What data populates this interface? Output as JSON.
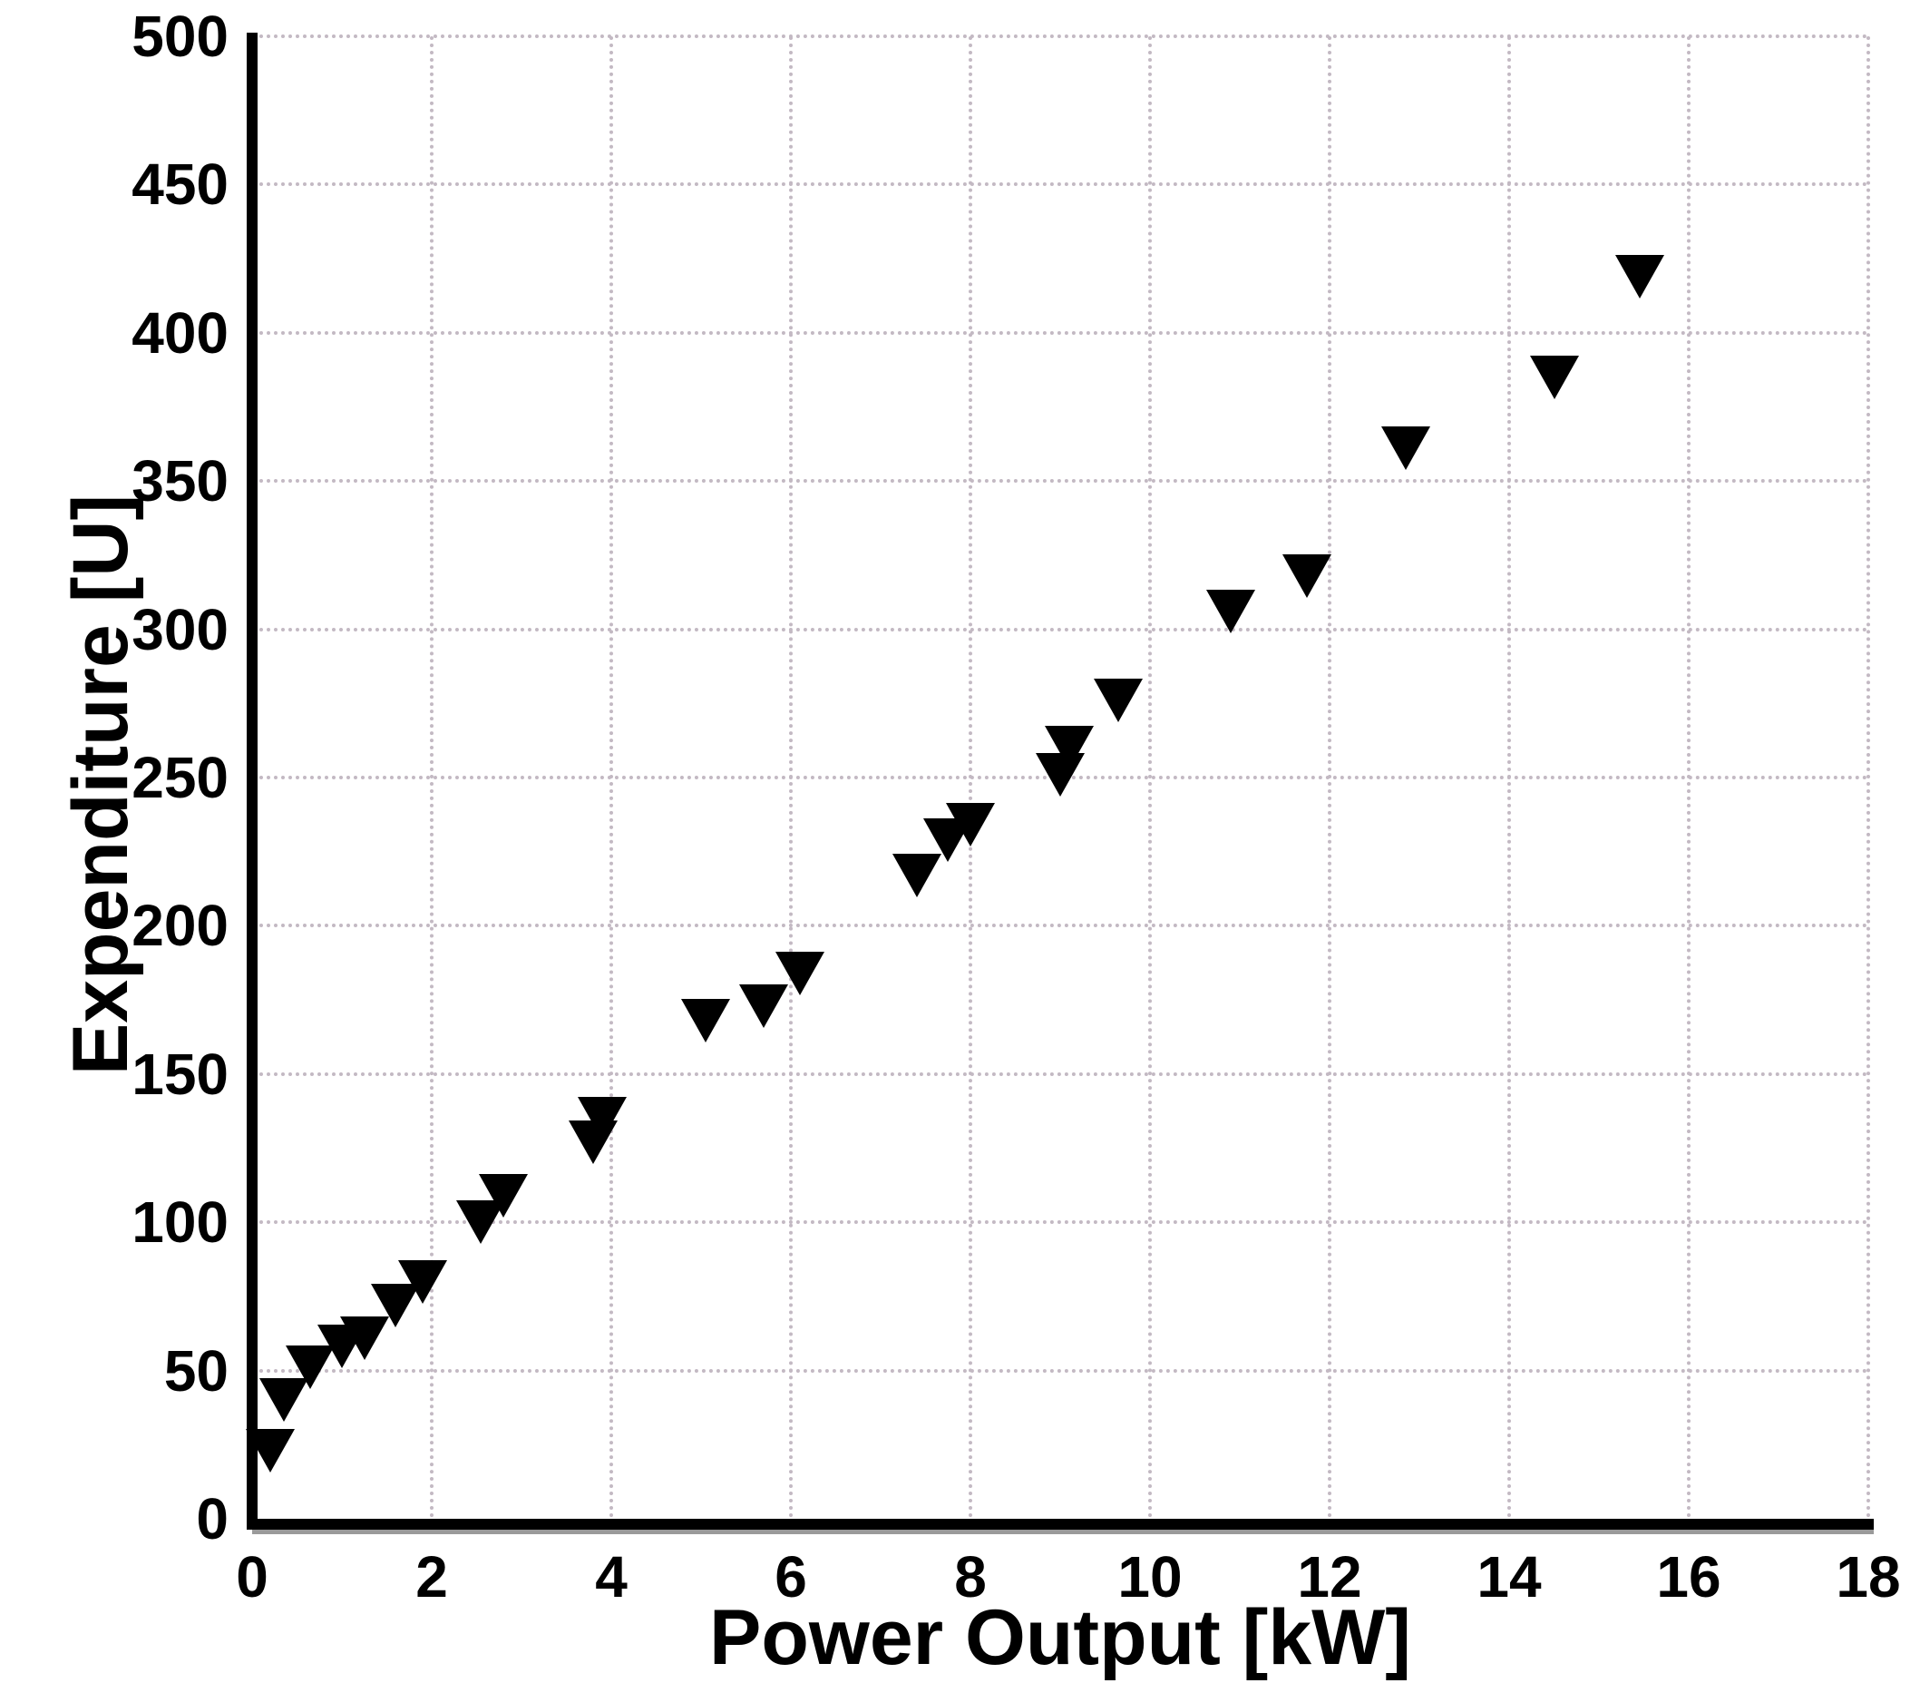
{
  "chart_data": {
    "type": "scatter",
    "title": "",
    "xlabel": "Power Output [kW]",
    "ylabel": "Expenditure [U]",
    "xlim": [
      0,
      18
    ],
    "ylim": [
      0,
      500
    ],
    "x_ticks": [
      0,
      2,
      4,
      6,
      8,
      10,
      12,
      14,
      16,
      18
    ],
    "y_ticks": [
      0,
      50,
      100,
      150,
      200,
      250,
      300,
      350,
      400,
      450,
      500
    ],
    "grid": "dotted",
    "grid_color": "#c3b9c3",
    "legend": "none",
    "marker": "triangle-down",
    "marker_color": "#000000",
    "series": [
      {
        "name": "expenditure-vs-power",
        "x": [
          0.2,
          0.35,
          0.65,
          1.0,
          1.25,
          1.6,
          1.9,
          2.55,
          2.8,
          3.8,
          3.9,
          5.05,
          5.7,
          6.1,
          7.4,
          7.75,
          8.0,
          9.0,
          9.1,
          9.65,
          10.9,
          11.75,
          12.85,
          14.5,
          15.45
        ],
        "y": [
          23,
          40,
          51,
          58,
          61,
          72,
          80,
          100,
          109,
          127,
          135,
          168,
          173,
          184,
          217,
          229,
          234,
          251,
          260,
          276,
          306,
          318,
          361,
          385,
          419
        ]
      }
    ]
  }
}
